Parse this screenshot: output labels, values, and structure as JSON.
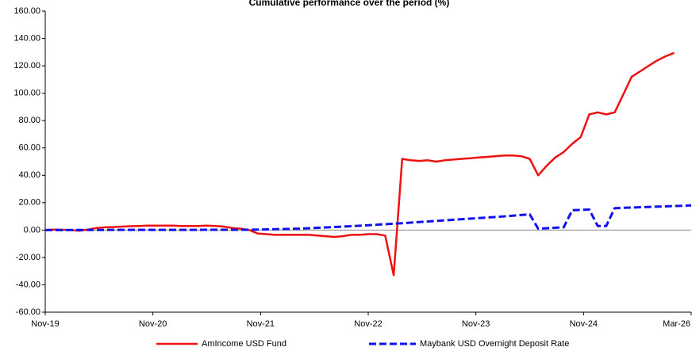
{
  "chart_data": {
    "type": "line",
    "title": "Cumulative performance over the period (%)",
    "xlabel": "",
    "ylabel": "",
    "ylim": [
      -60,
      160
    ],
    "y_ticks": [
      "160.00",
      "140.00",
      "120.00",
      "100.00",
      "80.00",
      "60.00",
      "40.00",
      "20.00",
      "0.00",
      "-20.00",
      "-40.00",
      "-60.00"
    ],
    "x_tick_labels": [
      "Nov-19",
      "Nov-20",
      "Nov-21",
      "Nov-22",
      "Nov-23",
      "Nov-24",
      "Mar-26"
    ],
    "x_range": [
      "2019-11",
      "2026-03"
    ],
    "grid": "horizontal zero line only",
    "legend_position": "bottom",
    "colors": {
      "fund": "#ee1111",
      "benchmark": "#1111ee",
      "axis": "#000000",
      "zero_line": "#888888"
    },
    "series": [
      {
        "name": "AmIncome USD Fund",
        "style": "solid",
        "points": [
          [
            "2019-11",
            0.0
          ],
          [
            "2019-12",
            0.3
          ],
          [
            "2020-01",
            0.2
          ],
          [
            "2020-02",
            0.0
          ],
          [
            "2020-03",
            -0.5
          ],
          [
            "2020-04",
            0.3
          ],
          [
            "2020-05",
            1.5
          ],
          [
            "2020-06",
            2.0
          ],
          [
            "2020-07",
            2.2
          ],
          [
            "2020-08",
            2.5
          ],
          [
            "2020-09",
            2.8
          ],
          [
            "2020-10",
            3.0
          ],
          [
            "2020-11",
            3.2
          ],
          [
            "2020-12",
            3.2
          ],
          [
            "2021-01",
            3.2
          ],
          [
            "2021-02",
            3.2
          ],
          [
            "2021-03",
            3.0
          ],
          [
            "2021-04",
            3.0
          ],
          [
            "2021-05",
            3.0
          ],
          [
            "2021-06",
            3.2
          ],
          [
            "2021-07",
            3.0
          ],
          [
            "2021-08",
            2.5
          ],
          [
            "2021-09",
            1.5
          ],
          [
            "2021-10",
            1.0
          ],
          [
            "2021-11",
            0.0
          ],
          [
            "2021-12",
            -2.5
          ],
          [
            "2022-01",
            -3.0
          ],
          [
            "2022-02",
            -3.5
          ],
          [
            "2022-03",
            -3.5
          ],
          [
            "2022-04",
            -3.5
          ],
          [
            "2022-05",
            -3.5
          ],
          [
            "2022-06",
            -3.5
          ],
          [
            "2022-07",
            -4.0
          ],
          [
            "2022-08",
            -4.5
          ],
          [
            "2022-09",
            -5.0
          ],
          [
            "2022-10",
            -4.5
          ],
          [
            "2022-11",
            -3.5
          ],
          [
            "2022-12",
            -3.5
          ],
          [
            "2023-01",
            -3.0
          ],
          [
            "2023-02",
            -3.0
          ],
          [
            "2023-03",
            -4.0
          ],
          [
            "2023-04",
            -33.0
          ],
          [
            "2023-05",
            52.0
          ],
          [
            "2023-06",
            51.0
          ],
          [
            "2023-07",
            50.5
          ],
          [
            "2023-08",
            51.0
          ],
          [
            "2023-09",
            50.0
          ],
          [
            "2023-10",
            51.0
          ],
          [
            "2023-11",
            51.5
          ],
          [
            "2023-12",
            52.0
          ],
          [
            "2024-01",
            52.5
          ],
          [
            "2024-02",
            53.0
          ],
          [
            "2024-03",
            53.5
          ],
          [
            "2024-04",
            54.0
          ],
          [
            "2024-05",
            54.5
          ],
          [
            "2024-06",
            54.5
          ],
          [
            "2024-07",
            54.0
          ],
          [
            "2024-08",
            52.0
          ],
          [
            "2024-09",
            40.0
          ],
          [
            "2024-10",
            47.0
          ],
          [
            "2024-11",
            53.0
          ],
          [
            "2024-12",
            57.0
          ],
          [
            "2025-01",
            63.0
          ],
          [
            "2025-02",
            68.0
          ],
          [
            "2025-03",
            84.5
          ],
          [
            "2025-04",
            86.0
          ],
          [
            "2025-05",
            84.5
          ],
          [
            "2025-06",
            86.0
          ],
          [
            "2025-07",
            99.0
          ],
          [
            "2025-08",
            112.0
          ],
          [
            "2025-09",
            116.0
          ],
          [
            "2025-10",
            120.0
          ],
          [
            "2025-11",
            124.0
          ],
          [
            "2025-12",
            127.0
          ],
          [
            "2026-01",
            129.5
          ]
        ]
      },
      {
        "name": "Maybank USD Overnight Deposit Rate",
        "style": "dashed",
        "points": [
          [
            "2019-11",
            0.0
          ],
          [
            "2020-05",
            0.1
          ],
          [
            "2021-11",
            0.2
          ],
          [
            "2022-05",
            1.0
          ],
          [
            "2022-11",
            2.8
          ],
          [
            "2023-05",
            5.0
          ],
          [
            "2023-11",
            7.5
          ],
          [
            "2024-05",
            10.0
          ],
          [
            "2024-08",
            11.5
          ],
          [
            "2024-09",
            1.0
          ],
          [
            "2024-12",
            2.0
          ],
          [
            "2025-01",
            14.5
          ],
          [
            "2025-03",
            15.0
          ],
          [
            "2025-04",
            3.0
          ],
          [
            "2025-05",
            3.0
          ],
          [
            "2025-06",
            16.0
          ],
          [
            "2026-03",
            18.0
          ]
        ]
      }
    ]
  }
}
